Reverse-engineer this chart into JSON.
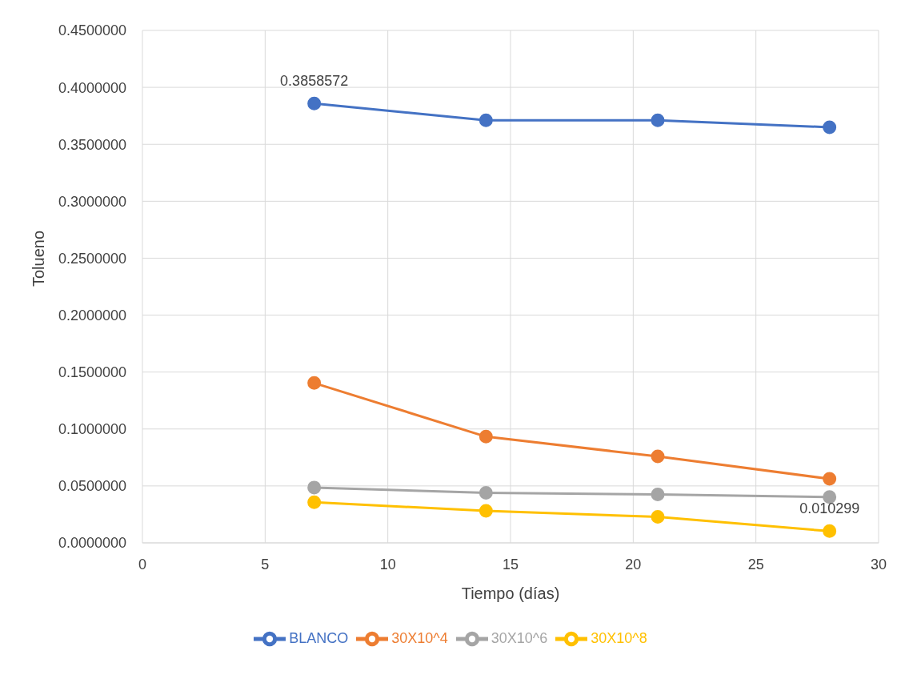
{
  "chart_data": {
    "type": "line",
    "xlabel": "Tiempo (días)",
    "ylabel": "Tolueno",
    "x": [
      7,
      14,
      21,
      28
    ],
    "series": [
      {
        "name": "BLANCO",
        "color": "#4472c4",
        "values": [
          0.3858572,
          0.371,
          0.371,
          0.365
        ],
        "value_labels": [
          "0.3858572",
          null,
          null,
          null
        ]
      },
      {
        "name": "30X10^4",
        "color": "#ed7d31",
        "values": [
          0.1404,
          0.0933,
          0.0759,
          0.0562
        ]
      },
      {
        "name": "30X10^6",
        "color": "#a5a5a5",
        "values": [
          0.0486,
          0.044,
          0.0425,
          0.0402
        ]
      },
      {
        "name": "30X10^8",
        "color": "#ffc000",
        "values": [
          0.0357,
          0.0281,
          0.0228,
          0.010299
        ],
        "value_labels": [
          null,
          null,
          null,
          "0.010299"
        ]
      }
    ],
    "xlim": [
      0,
      30
    ],
    "xticks": [
      0,
      5,
      10,
      15,
      20,
      25,
      30
    ],
    "ylim": [
      0,
      0.45
    ],
    "yticks": [
      {
        "value": 0,
        "label": "0.0000000"
      },
      {
        "value": 0.05,
        "label": "0.0500000"
      },
      {
        "value": 0.1,
        "label": "0.1000000"
      },
      {
        "value": 0.15,
        "label": "0.1500000"
      },
      {
        "value": 0.2,
        "label": "0.2000000"
      },
      {
        "value": 0.25,
        "label": "0.2500000"
      },
      {
        "value": 0.3,
        "label": "0.3000000"
      },
      {
        "value": 0.35,
        "label": "0.3500000"
      },
      {
        "value": 0.4,
        "label": "0.4000000"
      },
      {
        "value": 0.45,
        "label": "0.4500000"
      }
    ],
    "grid": true,
    "legend": "bottom",
    "marker": "circle",
    "line_style": "solid"
  }
}
